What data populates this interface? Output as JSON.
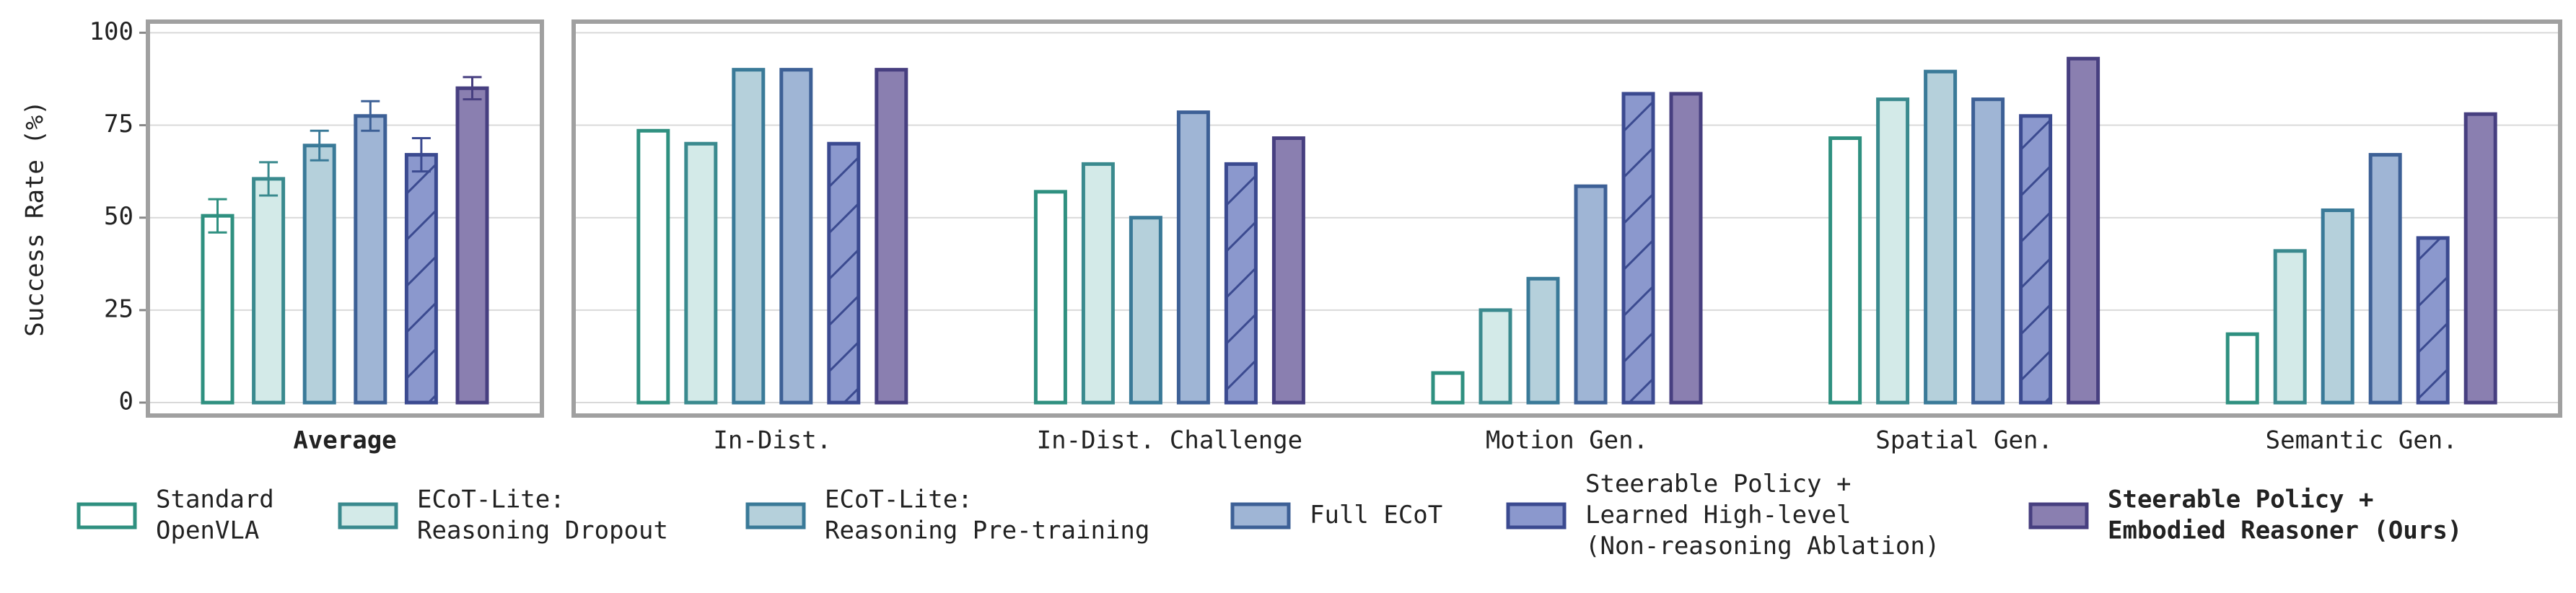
{
  "chart_data": {
    "type": "bar",
    "ylabel": "Success Rate (%)",
    "categories": [
      "Average",
      "In-Dist.",
      "In-Dist. Challenge",
      "Motion Gen.",
      "Spatial Gen.",
      "Semantic Gen."
    ],
    "ylim": [
      -3.5,
      103
    ],
    "yticks": [
      0,
      25,
      50,
      75,
      100
    ],
    "grid": true,
    "series": [
      {
        "name": "Standard\nOpenVLA",
        "color": "#ffffff",
        "edgecolor": "#2f9080",
        "values": [
          50.5,
          73.5,
          57,
          8,
          71.5,
          18.5
        ],
        "errors": [
          4.5,
          null,
          null,
          null,
          null,
          null
        ]
      },
      {
        "name": "ECoT-Lite:\nReasoning Dropout",
        "color": "#d3eae8",
        "edgecolor": "#3a8a8e",
        "values": [
          60.5,
          70,
          64.5,
          25,
          82,
          41
        ],
        "errors": [
          4.5,
          null,
          null,
          null,
          null,
          null
        ]
      },
      {
        "name": "ECoT-Lite:\nReasoning Pre-training",
        "color": "#b5d0db",
        "edgecolor": "#3a7a98",
        "values": [
          69.5,
          90,
          50,
          33.5,
          89.5,
          52
        ],
        "errors": [
          4,
          null,
          null,
          null,
          null,
          null
        ]
      },
      {
        "name": "Full ECoT",
        "color": "#9fb5d5",
        "edgecolor": "#3d6096",
        "values": [
          77.5,
          90,
          78.5,
          58.5,
          82,
          67
        ],
        "errors": [
          4,
          null,
          null,
          null,
          null,
          null
        ]
      },
      {
        "name": "Steerable Policy +\nLearned High-level\n(Non-reasoning Ablation)",
        "color": "#8b98cd",
        "edgecolor": "#3b4a90",
        "hatch": "/",
        "values": [
          67,
          70,
          64.5,
          83.5,
          77.5,
          44.5
        ],
        "errors": [
          4.5,
          null,
          null,
          null,
          null,
          null
        ]
      },
      {
        "name": "Steerable Policy +\nEmbodied Reasoner (Ours)",
        "color": "#8a7fb0",
        "edgecolor": "#473f80",
        "bold": true,
        "values": [
          85,
          90,
          71.5,
          83.5,
          93,
          78
        ],
        "errors": [
          3,
          null,
          null,
          null,
          null,
          null
        ]
      }
    ]
  }
}
